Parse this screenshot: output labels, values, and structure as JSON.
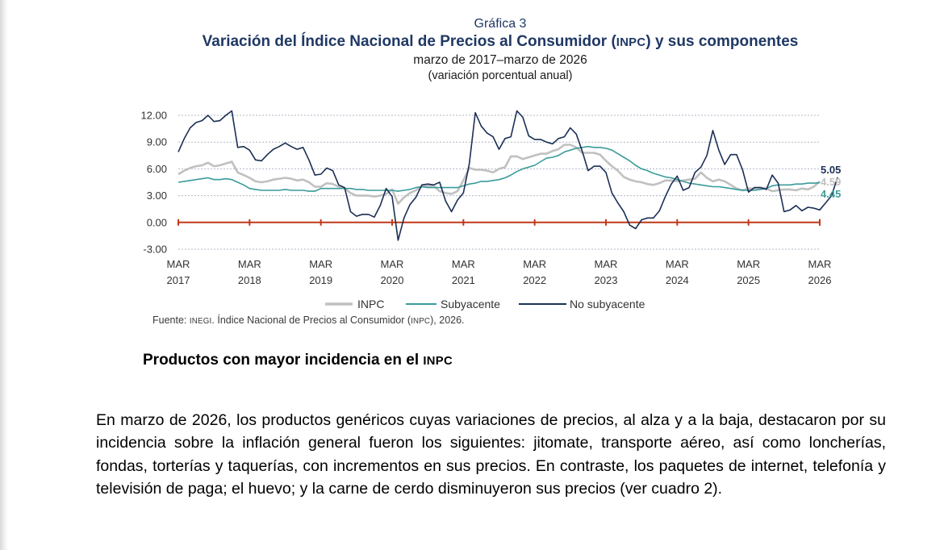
{
  "figure": {
    "number": "Gráfica 3",
    "title_main": "Variación del Índice Nacional de Precios al Consumidor (",
    "title_abbr": "INPC",
    "title_tail": ") y sus componentes",
    "period": "marzo de 2017–marzo de 2026",
    "units": "(variación porcentual anual)",
    "source_prefix": "Fuente: ",
    "source_org": "INEGI",
    "source_mid": ". Índice Nacional de Precios al Consumidor (",
    "source_abbr": "INPC",
    "source_tail": "), 2026."
  },
  "colors": {
    "inpc": "#c0c0c0",
    "subyacente": "#3a9c9a",
    "no_subyacente": "#1b2f55",
    "zero_line": "#c0391b",
    "grid": "#aeb8c6"
  },
  "chart_data": {
    "type": "line",
    "title": "Variación del Índice Nacional de Precios al Consumidor (INPC) y sus componentes",
    "subtitle": "marzo de 2017–marzo de 2026",
    "ylabel": "variación porcentual anual",
    "ylim": [
      -3,
      12
    ],
    "yticks": [
      "12.00",
      "9.00",
      "6.00",
      "3.00",
      "0.00",
      "-3.00"
    ],
    "ytick_values": [
      12,
      9,
      6,
      3,
      0,
      -3
    ],
    "xticks": [
      {
        "month": "MAR",
        "year": "2017",
        "index": 0
      },
      {
        "month": "MAR",
        "year": "2018",
        "index": 12
      },
      {
        "month": "MAR",
        "year": "2019",
        "index": 24
      },
      {
        "month": "MAR",
        "year": "2020",
        "index": 36
      },
      {
        "month": "MAR",
        "year": "2021",
        "index": 48
      },
      {
        "month": "MAR",
        "year": "2022",
        "index": 60
      },
      {
        "month": "MAR",
        "year": "2023",
        "index": 72
      },
      {
        "month": "MAR",
        "year": "2024",
        "index": 84
      },
      {
        "month": "MAR",
        "year": "2025",
        "index": 96
      },
      {
        "month": "MAR",
        "year": "2026",
        "index": 108
      }
    ],
    "end_labels": [
      {
        "series": "No subyacente",
        "value": "5.05"
      },
      {
        "series": "INPC",
        "value": "4.59"
      },
      {
        "series": "Subyacente",
        "value": "4.45"
      }
    ],
    "legend": [
      "INPC",
      "Subyacente",
      "No subyacente"
    ],
    "series": [
      {
        "name": "INPC",
        "values": [
          5.4,
          5.8,
          6.1,
          6.3,
          6.4,
          6.7,
          6.3,
          6.4,
          6.6,
          6.8,
          5.6,
          5.3,
          5.0,
          4.6,
          4.5,
          4.6,
          4.8,
          4.9,
          5.0,
          4.9,
          4.7,
          4.8,
          4.5,
          4.0,
          4.0,
          4.4,
          4.3,
          4.0,
          3.8,
          3.3,
          3.0,
          3.0,
          3.0,
          2.9,
          3.0,
          3.2,
          3.7,
          2.1,
          2.8,
          3.3,
          3.6,
          4.0,
          4.1,
          4.1,
          3.5,
          3.3,
          3.2,
          3.5,
          4.7,
          6.1,
          5.9,
          5.9,
          5.8,
          5.6,
          6.0,
          6.2,
          7.4,
          7.4,
          7.1,
          7.3,
          7.5,
          7.7,
          7.7,
          8.0,
          8.2,
          8.7,
          8.7,
          8.4,
          7.8,
          7.8,
          7.8,
          7.6,
          6.9,
          6.3,
          5.8,
          5.1,
          4.8,
          4.6,
          4.5,
          4.3,
          4.2,
          4.4,
          4.7,
          4.7,
          4.6,
          4.7,
          4.8,
          4.9,
          5.6,
          5.0,
          4.6,
          4.8,
          4.6,
          4.2,
          3.8,
          3.6,
          3.8,
          3.8,
          3.9,
          3.8,
          3.5,
          3.6,
          3.7,
          3.7,
          3.6,
          3.8,
          3.7,
          4.0,
          4.59
        ]
      },
      {
        "name": "Subyacente",
        "values": [
          4.5,
          4.6,
          4.7,
          4.8,
          4.9,
          5.0,
          4.8,
          4.8,
          4.9,
          4.8,
          4.5,
          4.2,
          3.8,
          3.7,
          3.6,
          3.6,
          3.6,
          3.6,
          3.7,
          3.6,
          3.6,
          3.6,
          3.5,
          3.5,
          3.8,
          3.8,
          3.8,
          3.8,
          3.8,
          3.8,
          3.7,
          3.7,
          3.6,
          3.6,
          3.6,
          3.6,
          3.6,
          3.5,
          3.6,
          3.7,
          3.9,
          4.0,
          3.9,
          3.9,
          3.9,
          3.9,
          3.9,
          3.9,
          4.1,
          4.3,
          4.4,
          4.6,
          4.6,
          4.7,
          4.8,
          5.0,
          5.3,
          5.7,
          6.0,
          6.2,
          6.4,
          6.8,
          7.2,
          7.3,
          7.5,
          7.9,
          8.1,
          8.3,
          8.4,
          8.5,
          8.4,
          8.4,
          8.3,
          8.1,
          7.7,
          7.3,
          6.9,
          6.4,
          6.0,
          5.8,
          5.5,
          5.3,
          5.1,
          5.0,
          4.8,
          4.6,
          4.4,
          4.3,
          4.2,
          4.1,
          4.0,
          4.0,
          3.9,
          3.8,
          3.7,
          3.6,
          3.6,
          3.6,
          3.7,
          3.8,
          4.1,
          4.2,
          4.2,
          4.2,
          4.3,
          4.3,
          4.4,
          4.4,
          4.45
        ]
      },
      {
        "name": "No subyacente",
        "values": [
          7.9,
          9.4,
          10.6,
          11.2,
          11.4,
          12.0,
          11.3,
          11.4,
          12.0,
          12.5,
          8.4,
          8.5,
          8.1,
          7.0,
          6.9,
          7.6,
          8.2,
          8.5,
          8.9,
          8.5,
          8.2,
          8.4,
          7.0,
          5.3,
          5.4,
          6.1,
          5.8,
          4.2,
          3.9,
          1.2,
          0.7,
          0.9,
          0.9,
          0.6,
          1.9,
          3.8,
          2.9,
          -2.0,
          0.5,
          2.0,
          2.8,
          4.2,
          4.3,
          4.2,
          4.5,
          2.4,
          1.2,
          2.5,
          3.3,
          6.6,
          12.3,
          10.8,
          10.0,
          9.6,
          8.2,
          9.4,
          9.6,
          12.5,
          11.8,
          9.7,
          9.3,
          9.3,
          9.0,
          8.8,
          9.4,
          9.6,
          10.6,
          9.9,
          8.0,
          5.8,
          6.3,
          6.3,
          5.6,
          3.3,
          2.2,
          1.2,
          -0.3,
          -0.7,
          0.3,
          0.5,
          0.5,
          1.3,
          2.9,
          4.3,
          5.2,
          3.6,
          3.9,
          5.6,
          6.2,
          7.5,
          10.3,
          8.1,
          6.5,
          7.6,
          7.6,
          5.9,
          3.4,
          3.9,
          3.9,
          3.7,
          5.3,
          4.4,
          1.2,
          1.4,
          1.9,
          1.3,
          1.7,
          1.6,
          1.4,
          2.2,
          3.0,
          5.05
        ]
      }
    ]
  },
  "section": {
    "heading_text": "Productos con mayor incidencia en el ",
    "heading_abbr": "INPC",
    "paragraph": "En marzo de 2026, los productos genéricos cuyas variaciones de precios, al alza y a la baja, destacaron por su incidencia sobre la inflación general fueron los siguientes: jitomate, transporte aéreo, así como loncherías, fondas, torterías y taquerías, con incrementos en sus precios. En contraste, los paquetes de internet, telefonía y televisión de paga; el huevo; y la carne de cerdo disminuyeron sus precios (ver cuadro 2)."
  }
}
